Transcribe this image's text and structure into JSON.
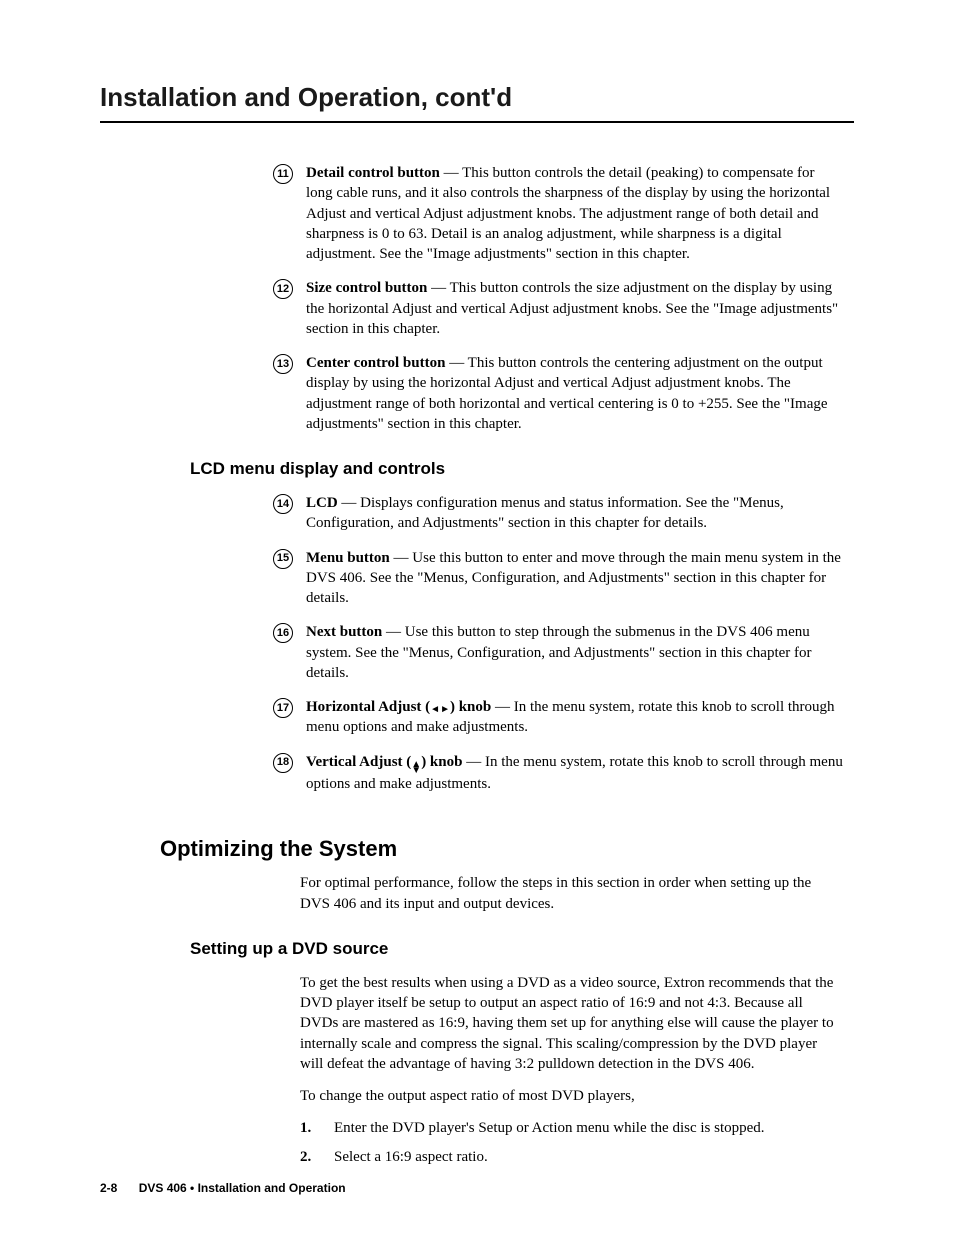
{
  "page_title": "Installation and Operation, cont'd",
  "items_a": [
    {
      "num": "11",
      "term": "Detail control button",
      "desc": " —  This button controls the detail (peaking) to compensate for long cable runs, and it also controls the sharpness of the display by using the horizontal Adjust and vertical Adjust adjustment knobs.  The adjustment range of both detail and sharpness is 0 to 63.  Detail is an analog adjustment, while sharpness is a digital adjustment.  See the \"Image adjustments\" section in this chapter."
    },
    {
      "num": "12",
      "term": "Size control button",
      "desc": " —  This button controls the size adjustment on the display by using the horizontal Adjust and vertical Adjust adjustment knobs.  See the \"Image adjustments\" section in this chapter."
    },
    {
      "num": "13",
      "term": "Center control button",
      "desc": " —  This button controls the centering adjustment on the output display by using the horizontal Adjust and vertical Adjust adjustment knobs.  The adjustment range of both horizontal and vertical centering is 0 to +255.  See the \"Image adjustments\" section in this chapter."
    }
  ],
  "section_sub_a": "LCD menu display and controls",
  "items_b": [
    {
      "num": "14",
      "term": "LCD",
      "desc": " —  Displays configuration menus and status information.  See the \"Menus, Configuration, and Adjustments\" section in this chapter for details."
    },
    {
      "num": "15",
      "term": "Menu button",
      "desc": " —  Use this button to enter and move through the main menu system in the DVS 406.  See the \"Menus, Configuration, and Adjustments\" section in this chapter for details."
    },
    {
      "num": "16",
      "term": "Next button",
      "desc": " —  Use this button to step through the submenus in the DVS 406 menu system.  See the \"Menus, Configuration, and Adjustments\" section in this chapter for details."
    },
    {
      "num": "17",
      "term_prefix": "Horizontal Adjust (",
      "term_suffix": ") knob",
      "arrows": "h",
      "desc": " —  In the menu system, rotate this knob to scroll through menu options and make adjustments."
    },
    {
      "num": "18",
      "term_prefix": "Vertical Adjust (",
      "term_suffix": ") knob",
      "arrows": "v",
      "desc": " —  In the menu system, rotate this knob to scroll through menu options and make adjustments."
    }
  ],
  "section_main": "Optimizing the System",
  "opt_para": "For optimal performance, follow the steps in this section in order when setting up the DVS 406 and its input and output devices.",
  "section_sub_b": "Setting up a DVD source",
  "dvd_para_1": "To get the best results when using a DVD as a video source, Extron recommends that the DVD player itself be setup to output an aspect ratio of 16:9 and not 4:3. Because all DVDs are mastered as 16:9, having them set up for anything else will cause the player to internally scale and compress the signal. This scaling/compression by the DVD player will defeat the advantage of having 3:2 pulldown detection in the DVS 406.",
  "dvd_para_2": "To change the output aspect ratio of most DVD players,",
  "steps": [
    {
      "n": "1.",
      "t": "Enter the DVD player's Setup or Action menu while the disc is stopped."
    },
    {
      "n": "2.",
      "t": "Select a 16:9 aspect ratio."
    }
  ],
  "footer_page": "2-8",
  "footer_title": "DVS 406 • Installation and Operation"
}
